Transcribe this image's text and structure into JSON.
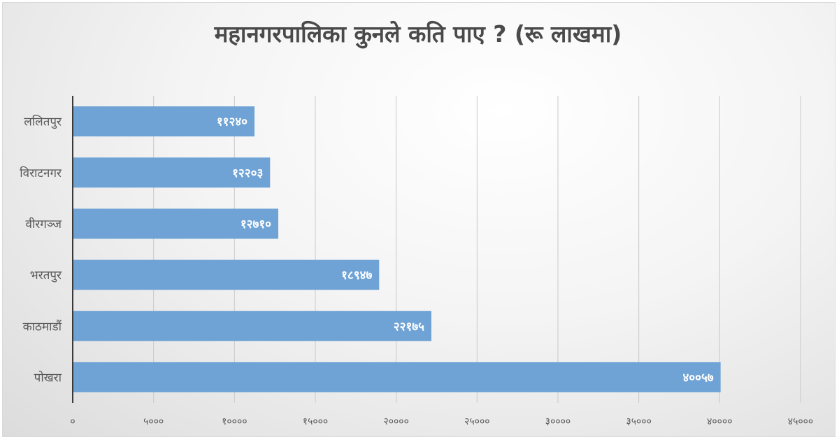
{
  "chart_data": {
    "type": "bar",
    "orientation": "horizontal",
    "title": "महानगरपालिका कुनले कति पाए ? (रू लाखमा)",
    "categories": [
      "ललितपुर",
      "विराटनगर",
      "वीरगञ्ज",
      "भरतपुर",
      "काठमाडौं",
      "पोखरा"
    ],
    "values": [
      11240,
      12203,
      12710,
      18947,
      22175,
      40057
    ],
    "data_labels": [
      "११२४०",
      "१२२०३",
      "१२७१०",
      "१८९४७",
      "२२१७५",
      "४००५७"
    ],
    "xlim": [
      0,
      45000
    ],
    "x_ticks": [
      0,
      5000,
      10000,
      15000,
      20000,
      25000,
      30000,
      35000,
      40000,
      45000
    ],
    "x_tick_labels": [
      "०",
      "५०००",
      "१००००",
      "१५०००",
      "२००००",
      "२५०००",
      "३००००",
      "३५०००",
      "४००००",
      "४५०००"
    ],
    "grid": true,
    "legend": "none",
    "bar_color": "#6fa3d6"
  }
}
